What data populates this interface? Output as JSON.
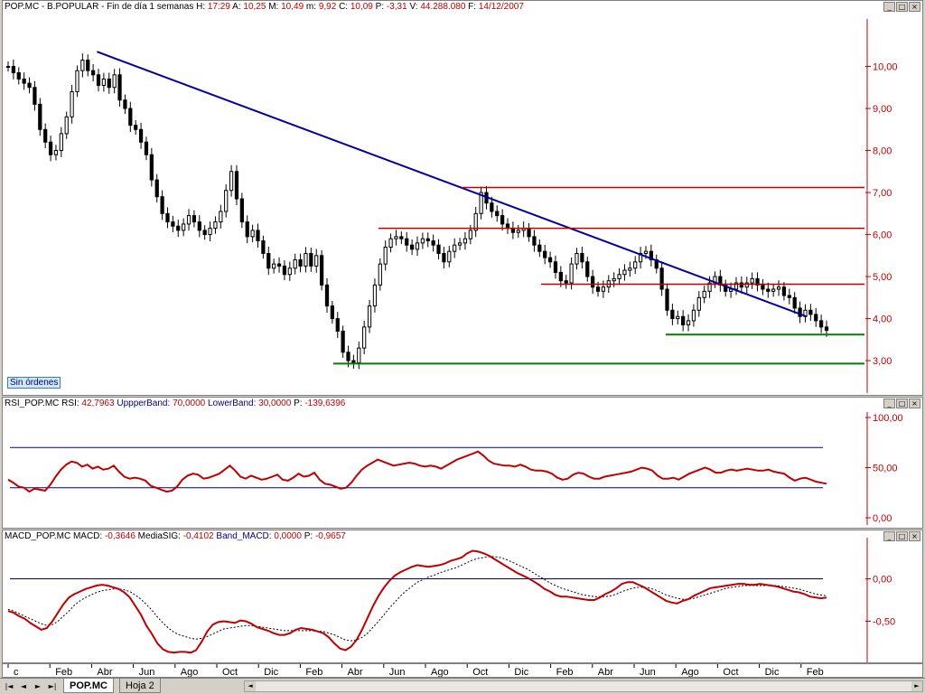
{
  "price_panel": {
    "title_prefix": "POP.MC - B.POPULAR - Fin de día 1 semanas",
    "h_label": "H:",
    "h_value": "17:29",
    "a_label": "A:",
    "a_value": "10,25",
    "m_label": "M:",
    "m_value": "10,49",
    "mlow_label": "m:",
    "mlow_value": "9,92",
    "c_label": "C:",
    "c_value": "10,09",
    "p_label": "P:",
    "p_value": "-3,31",
    "v_label": "V:",
    "v_value": "44.288.080",
    "f_label": "F:",
    "f_value": "14/12/2007",
    "orders_label": "Sin órdenes"
  },
  "rsi_panel": {
    "title_prefix": "RSI_POP.MC",
    "rsi_label": "RSI:",
    "rsi_value": "42,7963",
    "upper_label": "UppperBand:",
    "upper_value": "70,0000",
    "lower_label": "LowerBand:",
    "lower_value": "30,0000",
    "p_label": "P:",
    "p_value": "-139,6396"
  },
  "macd_panel": {
    "title_prefix": "MACD_POP.MC",
    "macd_label": "MACD:",
    "macd_value": "-0,3646",
    "sig_label": "MediaSIG:",
    "sig_value": "-0,4102",
    "band_label": "Band_MACD:",
    "band_value": "0,0000",
    "p_label": "P:",
    "p_value": "-0,9657"
  },
  "window_buttons": {
    "min": "_",
    "max": "□",
    "close": "×"
  },
  "tabs": [
    {
      "label": "POP.MC",
      "active": true
    },
    {
      "label": "Hoja 2",
      "active": false
    }
  ],
  "nav_buttons": [
    "|◄",
    "◄",
    "►",
    "►|"
  ],
  "colors": {
    "candle": "#000000",
    "trendline": "#0000a0",
    "resistance": "#c00000",
    "support": "#008000",
    "rsi_line": "#c00000",
    "band_line": "#000080",
    "macd_line": "#c00000",
    "signal_line": "#000000"
  },
  "chart_data": [
    {
      "type": "candlestick",
      "y_ticks": [
        "3,00",
        "4,00",
        "5,00",
        "6,00",
        "7,00",
        "8,00",
        "9,00",
        "10,00"
      ],
      "ylim": [
        2.4,
        11.0
      ],
      "x_ticks": [
        "c",
        "Feb",
        "Abr",
        "Jun",
        "Ago",
        "Oct",
        "Dic",
        "Feb",
        "Abr",
        "Jun",
        "Ago",
        "Oct",
        "Dic",
        "Feb",
        "Abr",
        "Jun",
        "Ago",
        "Oct",
        "Dic",
        "Feb"
      ],
      "weekly_close": [
        10.0,
        9.85,
        9.7,
        9.6,
        9.5,
        9.1,
        8.5,
        8.2,
        7.9,
        8.0,
        8.4,
        8.8,
        9.4,
        9.9,
        10.15,
        9.9,
        9.8,
        9.55,
        9.7,
        9.5,
        9.8,
        9.2,
        9.0,
        8.6,
        8.5,
        8.2,
        7.9,
        7.3,
        6.9,
        6.5,
        6.3,
        6.2,
        6.1,
        6.25,
        6.45,
        6.3,
        6.1,
        6.0,
        6.15,
        6.3,
        6.55,
        7.05,
        7.5,
        6.85,
        6.3,
        5.95,
        6.1,
        5.85,
        5.55,
        5.2,
        5.3,
        5.25,
        5.05,
        5.2,
        5.4,
        5.25,
        5.55,
        5.25,
        5.5,
        4.8,
        4.3,
        4.0,
        3.7,
        3.2,
        3.0,
        2.95,
        3.3,
        3.8,
        4.3,
        4.8,
        5.3,
        5.7,
        5.9,
        5.95,
        5.9,
        5.75,
        5.65,
        5.8,
        5.9,
        5.85,
        5.75,
        5.55,
        5.35,
        5.6,
        5.75,
        5.8,
        5.9,
        6.1,
        6.5,
        7.0,
        6.75,
        6.55,
        6.45,
        6.25,
        6.15,
        6.05,
        6.1,
        6.15,
        5.95,
        5.75,
        5.6,
        5.45,
        5.35,
        5.1,
        4.9,
        4.85,
        5.3,
        5.55,
        5.35,
        5.0,
        4.75,
        4.65,
        4.75,
        4.9,
        4.95,
        5.05,
        5.15,
        5.2,
        5.35,
        5.55,
        5.6,
        5.4,
        5.2,
        4.7,
        4.2,
        4.0,
        4.05,
        3.85,
        3.95,
        4.2,
        4.5,
        4.65,
        4.85,
        5.0,
        4.8,
        4.65,
        4.7,
        4.85,
        4.75,
        4.85,
        4.95,
        4.8,
        4.7,
        4.65,
        4.7,
        4.75,
        4.55,
        4.5,
        4.25,
        4.05,
        4.2,
        4.1,
        3.95,
        3.8,
        3.72
      ],
      "trendline": {
        "from": [
          "Abr",
          10.35
        ],
        "to": [
          "Feb",
          4.05
        ]
      },
      "resistance_levels": [
        7.12,
        6.15,
        4.82
      ],
      "support_levels": [
        3.62,
        2.93
      ]
    },
    {
      "type": "line",
      "y_ticks": [
        "0,00",
        "50,00",
        "100,00"
      ],
      "ylim": [
        0,
        100
      ],
      "upper_band": 70,
      "lower_band": 30,
      "rsi": [
        38,
        35,
        31,
        30,
        26,
        29,
        28,
        27,
        33,
        41,
        48,
        53,
        56,
        55,
        51,
        53,
        49,
        51,
        48,
        49,
        52,
        46,
        41,
        39,
        40,
        39,
        37,
        32,
        30,
        28,
        26,
        27,
        31,
        38,
        42,
        44,
        43,
        39,
        40,
        42,
        44,
        48,
        52,
        47,
        41,
        39,
        42,
        40,
        38,
        39,
        41,
        43,
        38,
        37,
        40,
        44,
        41,
        42,
        45,
        38,
        34,
        33,
        31,
        29,
        30,
        35,
        42,
        48,
        52,
        55,
        58,
        56,
        54,
        52,
        53,
        54,
        55,
        54,
        52,
        51,
        52,
        51,
        49,
        52,
        55,
        58,
        60,
        62,
        64,
        66,
        62,
        57,
        54,
        53,
        52,
        52,
        51,
        53,
        51,
        48,
        47,
        47,
        46,
        44,
        40,
        38,
        39,
        43,
        45,
        44,
        41,
        39,
        39,
        41,
        42,
        43,
        44,
        45,
        46,
        48,
        50,
        49,
        47,
        42,
        39,
        39,
        40,
        38,
        41,
        44,
        46,
        48,
        50,
        48,
        45,
        45,
        47,
        48,
        47,
        48,
        49,
        48,
        47,
        47,
        48,
        46,
        45,
        44,
        40,
        37,
        39,
        40,
        38,
        36,
        35,
        34
      ]
    },
    {
      "type": "line",
      "y_ticks": [
        "0,00",
        "-0,50"
      ],
      "ylim": [
        -0.92,
        0.42
      ],
      "macd": [
        -0.38,
        -0.4,
        -0.44,
        -0.47,
        -0.52,
        -0.56,
        -0.6,
        -0.58,
        -0.5,
        -0.4,
        -0.3,
        -0.22,
        -0.18,
        -0.15,
        -0.12,
        -0.1,
        -0.08,
        -0.07,
        -0.08,
        -0.1,
        -0.12,
        -0.16,
        -0.22,
        -0.32,
        -0.42,
        -0.55,
        -0.65,
        -0.76,
        -0.83,
        -0.86,
        -0.87,
        -0.86,
        -0.86,
        -0.87,
        -0.84,
        -0.74,
        -0.62,
        -0.54,
        -0.51,
        -0.5,
        -0.51,
        -0.52,
        -0.49,
        -0.5,
        -0.53,
        -0.57,
        -0.59,
        -0.61,
        -0.64,
        -0.66,
        -0.66,
        -0.64,
        -0.6,
        -0.58,
        -0.59,
        -0.6,
        -0.62,
        -0.64,
        -0.69,
        -0.76,
        -0.82,
        -0.84,
        -0.8,
        -0.72,
        -0.6,
        -0.46,
        -0.32,
        -0.2,
        -0.1,
        -0.02,
        0.04,
        0.08,
        0.11,
        0.14,
        0.16,
        0.15,
        0.14,
        0.15,
        0.16,
        0.18,
        0.21,
        0.23,
        0.25,
        0.3,
        0.33,
        0.32,
        0.3,
        0.27,
        0.23,
        0.19,
        0.15,
        0.11,
        0.07,
        0.04,
        0.01,
        -0.03,
        -0.07,
        -0.12,
        -0.15,
        -0.19,
        -0.21,
        -0.21,
        -0.22,
        -0.23,
        -0.24,
        -0.25,
        -0.25,
        -0.22,
        -0.18,
        -0.15,
        -0.11,
        -0.06,
        -0.04,
        -0.04,
        -0.07,
        -0.1,
        -0.14,
        -0.18,
        -0.22,
        -0.26,
        -0.28,
        -0.29,
        -0.26,
        -0.24,
        -0.2,
        -0.17,
        -0.14,
        -0.11,
        -0.1,
        -0.09,
        -0.08,
        -0.07,
        -0.06,
        -0.06,
        -0.07,
        -0.07,
        -0.06,
        -0.07,
        -0.08,
        -0.09,
        -0.11,
        -0.13,
        -0.15,
        -0.16,
        -0.18,
        -0.21,
        -0.22,
        -0.23,
        -0.22
      ],
      "signal": [
        -0.36,
        -0.38,
        -0.41,
        -0.44,
        -0.47,
        -0.5,
        -0.53,
        -0.55,
        -0.54,
        -0.5,
        -0.44,
        -0.38,
        -0.31,
        -0.26,
        -0.22,
        -0.19,
        -0.16,
        -0.14,
        -0.13,
        -0.12,
        -0.12,
        -0.13,
        -0.15,
        -0.19,
        -0.24,
        -0.3,
        -0.37,
        -0.45,
        -0.52,
        -0.58,
        -0.63,
        -0.66,
        -0.68,
        -0.7,
        -0.71,
        -0.7,
        -0.68,
        -0.65,
        -0.62,
        -0.59,
        -0.58,
        -0.57,
        -0.56,
        -0.55,
        -0.55,
        -0.56,
        -0.57,
        -0.58,
        -0.59,
        -0.6,
        -0.61,
        -0.61,
        -0.61,
        -0.61,
        -0.61,
        -0.61,
        -0.62,
        -0.62,
        -0.64,
        -0.66,
        -0.69,
        -0.72,
        -0.73,
        -0.72,
        -0.69,
        -0.64,
        -0.57,
        -0.5,
        -0.42,
        -0.34,
        -0.27,
        -0.2,
        -0.14,
        -0.09,
        -0.04,
        -0.01,
        0.02,
        0.04,
        0.07,
        0.09,
        0.11,
        0.13,
        0.16,
        0.19,
        0.22,
        0.24,
        0.25,
        0.26,
        0.26,
        0.25,
        0.23,
        0.2,
        0.17,
        0.14,
        0.11,
        0.07,
        0.03,
        -0.01,
        -0.05,
        -0.08,
        -0.11,
        -0.13,
        -0.15,
        -0.17,
        -0.19,
        -0.2,
        -0.21,
        -0.21,
        -0.21,
        -0.2,
        -0.18,
        -0.15,
        -0.13,
        -0.11,
        -0.1,
        -0.1,
        -0.11,
        -0.13,
        -0.16,
        -0.19,
        -0.21,
        -0.23,
        -0.24,
        -0.24,
        -0.23,
        -0.21,
        -0.19,
        -0.17,
        -0.15,
        -0.13,
        -0.11,
        -0.1,
        -0.09,
        -0.08,
        -0.08,
        -0.08,
        -0.08,
        -0.08,
        -0.08,
        -0.08,
        -0.09,
        -0.1,
        -0.11,
        -0.12,
        -0.14,
        -0.16,
        -0.18,
        -0.19,
        -0.2
      ]
    }
  ]
}
